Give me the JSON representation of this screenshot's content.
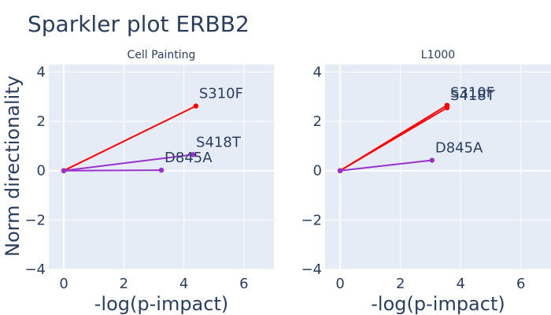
{
  "title": "Sparkler plot ERBB2",
  "ylabel": "Norm directionality",
  "colors": {
    "plot_bg": "#e5ecf6",
    "grid": "#ffffff",
    "text": "#2a3f5f",
    "red": "#ff0000",
    "purple": "#9932cc"
  },
  "chart_data": [
    {
      "type": "line",
      "title": "Cell Painting",
      "xlabel": "-log(p-impact)",
      "xlim": [
        -0.5,
        7
      ],
      "ylim": [
        -4,
        4.3
      ],
      "xticks": [
        0,
        2,
        4,
        6
      ],
      "yticks": [
        -4,
        -2,
        0,
        2,
        4
      ],
      "grid": true,
      "points": [
        {
          "label": "S310F",
          "x": 4.4,
          "y": 2.62,
          "color": "red"
        },
        {
          "label": "S418T",
          "x": 4.3,
          "y": 0.65,
          "color": "purple"
        },
        {
          "label": "D845A",
          "x": 3.25,
          "y": 0.02,
          "color": "purple"
        }
      ]
    },
    {
      "type": "line",
      "title": "L1000",
      "xlabel": "-log(p-impact)",
      "xlim": [
        -0.5,
        7
      ],
      "ylim": [
        -4,
        4.3
      ],
      "xticks": [
        0,
        2,
        4,
        6
      ],
      "yticks": [
        -4,
        -2,
        0,
        2,
        4
      ],
      "grid": true,
      "points": [
        {
          "label": "S310F",
          "x": 3.55,
          "y": 2.65,
          "color": "red"
        },
        {
          "label": "S418T",
          "x": 3.55,
          "y": 2.55,
          "color": "red"
        },
        {
          "label": "D845A",
          "x": 3.05,
          "y": 0.42,
          "color": "purple"
        }
      ]
    }
  ]
}
